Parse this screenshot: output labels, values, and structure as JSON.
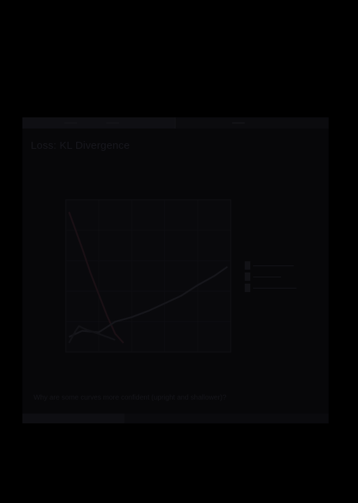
{
  "slide": {
    "title": "Loss: KL Divergence",
    "question": "Why are some curves more confident (upright and shallower)?",
    "footer": {
      "left": "",
      "center": "",
      "right": ""
    }
  },
  "chart_data": {
    "type": "line",
    "title": "",
    "xlabel": "",
    "ylabel": "",
    "xlim": [
      0,
      1
    ],
    "ylim": [
      0,
      1
    ],
    "grid": true,
    "legend_position": "right",
    "series": [
      {
        "x": [
          0.02,
          0.06,
          0.1,
          0.15,
          0.2,
          0.25,
          0.3,
          0.35
        ],
        "values": [
          0.92,
          0.8,
          0.68,
          0.52,
          0.38,
          0.24,
          0.12,
          0.06
        ]
      },
      {
        "x": [
          0.02,
          0.1,
          0.2,
          0.3,
          0.4,
          0.5,
          0.6,
          0.7,
          0.8,
          0.9,
          0.98
        ],
        "values": [
          0.1,
          0.14,
          0.13,
          0.2,
          0.23,
          0.27,
          0.32,
          0.37,
          0.44,
          0.5,
          0.56
        ]
      },
      {
        "x": [
          0.02,
          0.04,
          0.06,
          0.08,
          0.12,
          0.2,
          0.3
        ],
        "values": [
          0.06,
          0.1,
          0.14,
          0.17,
          0.15,
          0.12,
          0.08
        ]
      }
    ]
  },
  "colors": {
    "background": "#000000",
    "slide": "#070709",
    "series": [
      "#1a1015",
      "#16161b",
      "#121216"
    ]
  }
}
